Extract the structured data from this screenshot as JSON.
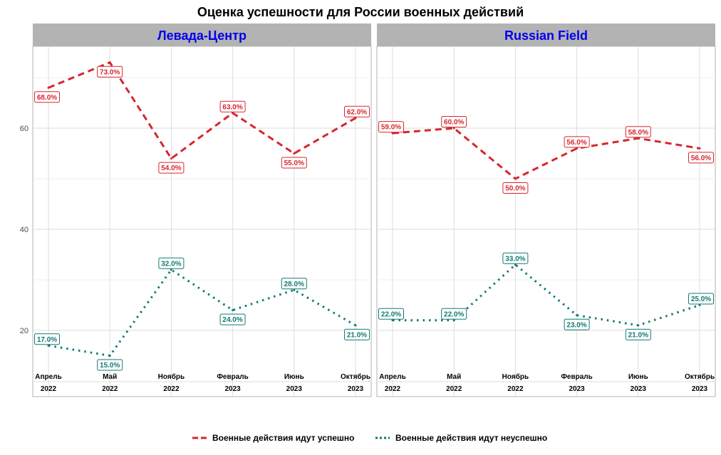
{
  "title": "Оценка успешности для России военных действий",
  "legend": {
    "position": "bottom",
    "items": [
      {
        "label": "Военные действия идут успешно",
        "color": "#d7262e",
        "style": "dashed"
      },
      {
        "label": "Военные действия идут неуспешно",
        "color": "#117a73",
        "style": "dotted"
      }
    ]
  },
  "chart_data": {
    "type": "line",
    "title": "Оценка успешности для России военных действий",
    "ylim": [
      10,
      75
    ],
    "yticks": [
      "20",
      "40",
      "60"
    ],
    "grid": true,
    "categories": [
      "Апрель\n2022",
      "Май\n2022",
      "Ноябрь\n2022",
      "Февраль\n2023",
      "Июнь\n2023",
      "Октябрь\n2023"
    ],
    "panels": [
      {
        "name": "Левада-Центр",
        "series": [
          {
            "name": "Военные действия идут успешно",
            "values": [
              68,
              73,
              54,
              63,
              55,
              62
            ],
            "labels": [
              "68.0%",
              "73.0%",
              "54.0%",
              "63.0%",
              "55.0%",
              "62.0%"
            ],
            "label_pos": [
              "below",
              "below",
              "below",
              "above",
              "below",
              "above"
            ]
          },
          {
            "name": "Военные действия идут неуспешно",
            "values": [
              17,
              15,
              32,
              24,
              28,
              21
            ],
            "labels": [
              "17.0%",
              "15.0%",
              "32.0%",
              "24.0%",
              "28.0%",
              "21.0%"
            ],
            "label_pos": [
              "above",
              "below",
              "above",
              "below",
              "above",
              "below"
            ]
          }
        ]
      },
      {
        "name": "Russian Field",
        "series": [
          {
            "name": "Военные действия идут успешно",
            "values": [
              59,
              60,
              50,
              56,
              58,
              56
            ],
            "labels": [
              "59.0%",
              "60.0%",
              "50.0%",
              "56.0%",
              "58.0%",
              "56.0%"
            ],
            "label_pos": [
              "above",
              "above",
              "below",
              "above",
              "above",
              "below"
            ]
          },
          {
            "name": "Военные действия идут неуспешно",
            "values": [
              22,
              22,
              33,
              23,
              21,
              25
            ],
            "labels": [
              "22.0%",
              "22.0%",
              "33.0%",
              "23.0%",
              "21.0%",
              "25.0%"
            ],
            "label_pos": [
              "above",
              "above",
              "above",
              "below",
              "below",
              "above"
            ]
          }
        ]
      }
    ]
  }
}
